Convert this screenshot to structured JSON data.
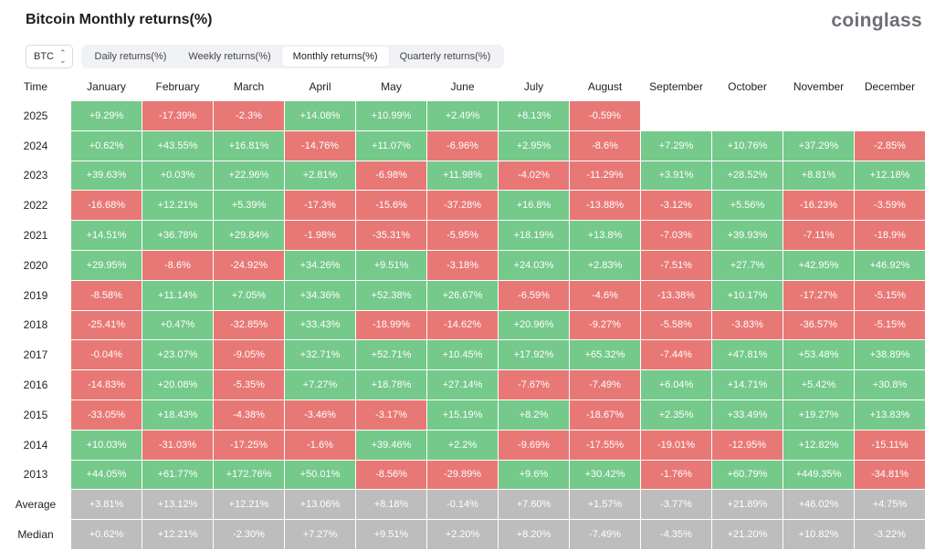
{
  "header": {
    "title": "Bitcoin Monthly returns(%)",
    "logo": "coinglass"
  },
  "controls": {
    "asset_select": "BTC",
    "tabs": [
      {
        "label": "Daily returns(%)",
        "active": false
      },
      {
        "label": "Weekly returns(%)",
        "active": false
      },
      {
        "label": "Monthly returns(%)",
        "active": true
      },
      {
        "label": "Quarterly returns(%)",
        "active": false
      }
    ]
  },
  "colors": {
    "positive": "#75c98b",
    "negative": "#e87875",
    "summary": "#bdbdbd"
  },
  "table": {
    "time_label": "Time",
    "months": [
      "January",
      "February",
      "March",
      "April",
      "May",
      "June",
      "July",
      "August",
      "September",
      "October",
      "November",
      "December"
    ],
    "rows": [
      {
        "year": "2025",
        "values": [
          "+9.29%",
          "-17.39%",
          "-2.3%",
          "+14.08%",
          "+10.99%",
          "+2.49%",
          "+8.13%",
          "-0.59%",
          "",
          "",
          "",
          ""
        ]
      },
      {
        "year": "2024",
        "values": [
          "+0.62%",
          "+43.55%",
          "+16.81%",
          "-14.76%",
          "+11.07%",
          "-6.96%",
          "+2.95%",
          "-8.6%",
          "+7.29%",
          "+10.76%",
          "+37.29%",
          "-2.85%"
        ]
      },
      {
        "year": "2023",
        "values": [
          "+39.63%",
          "+0.03%",
          "+22.96%",
          "+2.81%",
          "-6.98%",
          "+11.98%",
          "-4.02%",
          "-11.29%",
          "+3.91%",
          "+28.52%",
          "+8.81%",
          "+12.18%"
        ]
      },
      {
        "year": "2022",
        "values": [
          "-16.68%",
          "+12.21%",
          "+5.39%",
          "-17.3%",
          "-15.6%",
          "-37.28%",
          "+16.8%",
          "-13.88%",
          "-3.12%",
          "+5.56%",
          "-16.23%",
          "-3.59%"
        ]
      },
      {
        "year": "2021",
        "values": [
          "+14.51%",
          "+36.78%",
          "+29.84%",
          "-1.98%",
          "-35.31%",
          "-5.95%",
          "+18.19%",
          "+13.8%",
          "-7.03%",
          "+39.93%",
          "-7.11%",
          "-18.9%"
        ]
      },
      {
        "year": "2020",
        "values": [
          "+29.95%",
          "-8.6%",
          "-24.92%",
          "+34.26%",
          "+9.51%",
          "-3.18%",
          "+24.03%",
          "+2.83%",
          "-7.51%",
          "+27.7%",
          "+42.95%",
          "+46.92%"
        ]
      },
      {
        "year": "2019",
        "values": [
          "-8.58%",
          "+11.14%",
          "+7.05%",
          "+34.36%",
          "+52.38%",
          "+26.67%",
          "-6.59%",
          "-4.6%",
          "-13.38%",
          "+10.17%",
          "-17.27%",
          "-5.15%"
        ]
      },
      {
        "year": "2018",
        "values": [
          "-25.41%",
          "+0.47%",
          "-32.85%",
          "+33.43%",
          "-18.99%",
          "-14.62%",
          "+20.96%",
          "-9.27%",
          "-5.58%",
          "-3.83%",
          "-36.57%",
          "-5.15%"
        ]
      },
      {
        "year": "2017",
        "values": [
          "-0.04%",
          "+23.07%",
          "-9.05%",
          "+32.71%",
          "+52.71%",
          "+10.45%",
          "+17.92%",
          "+65.32%",
          "-7.44%",
          "+47.81%",
          "+53.48%",
          "+38.89%"
        ]
      },
      {
        "year": "2016",
        "values": [
          "-14.83%",
          "+20.08%",
          "-5.35%",
          "+7.27%",
          "+18.78%",
          "+27.14%",
          "-7.67%",
          "-7.49%",
          "+6.04%",
          "+14.71%",
          "+5.42%",
          "+30.8%"
        ]
      },
      {
        "year": "2015",
        "values": [
          "-33.05%",
          "+18.43%",
          "-4.38%",
          "-3.46%",
          "-3.17%",
          "+15.19%",
          "+8.2%",
          "-18.67%",
          "+2.35%",
          "+33.49%",
          "+19.27%",
          "+13.83%"
        ]
      },
      {
        "year": "2014",
        "values": [
          "+10.03%",
          "-31.03%",
          "-17.25%",
          "-1.6%",
          "+39.46%",
          "+2.2%",
          "-9.69%",
          "-17.55%",
          "-19.01%",
          "-12.95%",
          "+12.82%",
          "-15.11%"
        ]
      },
      {
        "year": "2013",
        "values": [
          "+44.05%",
          "+61.77%",
          "+172.76%",
          "+50.01%",
          "-8.56%",
          "-29.89%",
          "+9.6%",
          "+30.42%",
          "-1.76%",
          "+60.79%",
          "+449.35%",
          "-34.81%"
        ]
      }
    ],
    "summary": [
      {
        "label": "Average",
        "values": [
          "+3.81%",
          "+13.12%",
          "+12.21%",
          "+13.06%",
          "+8.18%",
          "-0.14%",
          "+7.60%",
          "+1.57%",
          "-3.77%",
          "+21.89%",
          "+46.02%",
          "+4.75%"
        ]
      },
      {
        "label": "Median",
        "values": [
          "+0.62%",
          "+12.21%",
          "-2.30%",
          "+7.27%",
          "+9.51%",
          "+2.20%",
          "+8.20%",
          "-7.49%",
          "-4.35%",
          "+21.20%",
          "+10.82%",
          "-3.22%"
        ]
      }
    ]
  }
}
